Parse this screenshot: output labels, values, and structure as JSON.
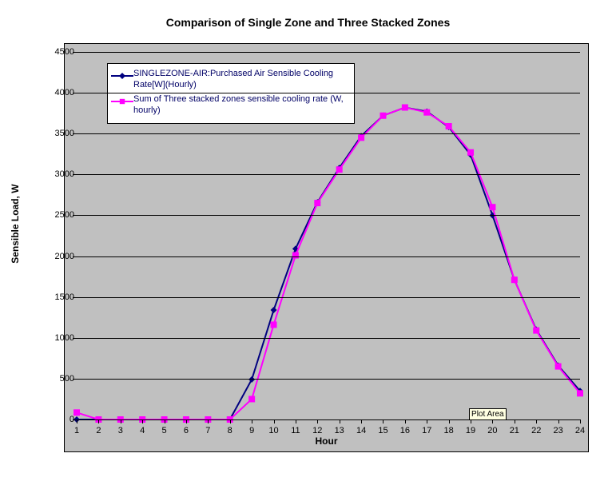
{
  "chart": {
    "type": "line",
    "title": "Comparison of Single Zone and Three Stacked Zones",
    "xlabel": "Hour",
    "ylabel": "Sensible Load, W",
    "title_fontsize": 14,
    "label_fontsize": 12,
    "tick_fontsize": 11,
    "background_color": "#c0c0c0",
    "page_background": "#ffffff",
    "grid_color": "#000000",
    "axis_color": "#000000",
    "xlim": [
      1,
      24
    ],
    "ylim": [
      0,
      4500
    ],
    "ytick_step": 500,
    "yticks": [
      0,
      500,
      1000,
      1500,
      2000,
      2500,
      3000,
      3500,
      4000,
      4500
    ],
    "xticks": [
      1,
      2,
      3,
      4,
      5,
      6,
      7,
      8,
      9,
      10,
      11,
      12,
      13,
      14,
      15,
      16,
      17,
      18,
      19,
      20,
      21,
      22,
      23,
      24
    ],
    "legend_bg": "#ffffff",
    "legend_border": "#000000",
    "legend_text_color": "#000066",
    "tooltip": {
      "text": "Plot Area",
      "bg": "#ffffe1"
    },
    "series": [
      {
        "name": "SINGLEZONE-AIR:Purchased Air Sensible Cooling Rate[W](Hourly)",
        "color": "#000080",
        "marker": "diamond",
        "marker_color": "#000080",
        "line_width": 2,
        "x": [
          1,
          2,
          3,
          4,
          5,
          6,
          7,
          8,
          9,
          10,
          11,
          12,
          13,
          14,
          15,
          16,
          17,
          18,
          19,
          20,
          21,
          22,
          23,
          24
        ],
        "y": [
          0,
          0,
          0,
          0,
          0,
          0,
          0,
          0,
          490,
          1340,
          2090,
          2660,
          3080,
          3470,
          3720,
          3820,
          3770,
          3580,
          3240,
          2500,
          1710,
          1100,
          660,
          350
        ]
      },
      {
        "name": "Sum of Three stacked zones sensible cooling rate (W, hourly)",
        "color": "#ff00ff",
        "marker": "square",
        "marker_color": "#ff00ff",
        "line_width": 2,
        "x": [
          1,
          2,
          3,
          4,
          5,
          6,
          7,
          8,
          9,
          10,
          11,
          12,
          13,
          14,
          15,
          16,
          17,
          18,
          19,
          20,
          21,
          22,
          23,
          24
        ],
        "y": [
          85,
          0,
          0,
          0,
          0,
          0,
          0,
          0,
          250,
          1160,
          2010,
          2650,
          3060,
          3450,
          3720,
          3820,
          3760,
          3590,
          3270,
          2600,
          1710,
          1090,
          650,
          320
        ]
      }
    ]
  }
}
